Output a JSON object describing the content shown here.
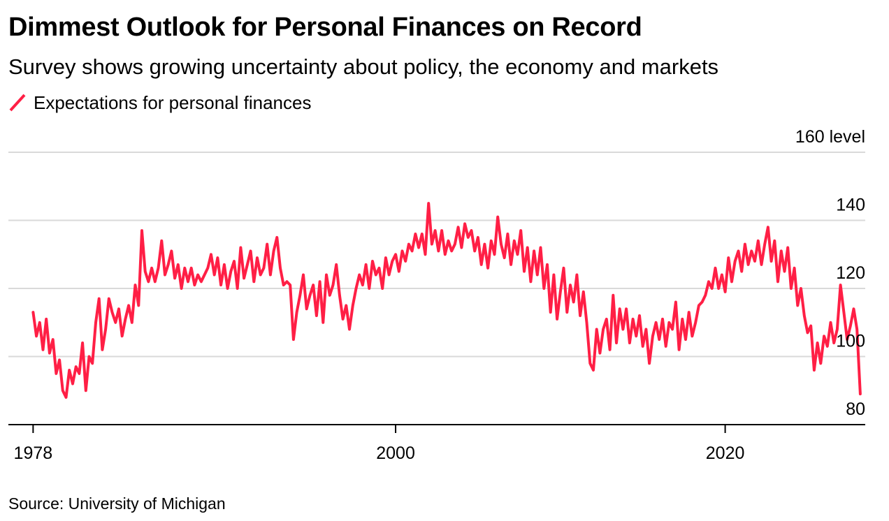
{
  "header": {
    "title": "Dimmest Outlook for Personal Finances on Record",
    "subtitle": "Survey shows growing uncertainty about policy, the economy and markets"
  },
  "legend": {
    "label": "Expectations for personal finances"
  },
  "footer": {
    "source": "Source: University of Michigan"
  },
  "colors": {
    "series": "#ff1f45",
    "grid": "#d9d9d9",
    "axis": "#000000"
  },
  "chart_data": {
    "type": "line",
    "title": "Dimmest Outlook for Personal Finances on Record",
    "subtitle": "Survey shows growing uncertainty about policy, the economy and markets",
    "xlabel": "",
    "ylabel": "",
    "ylim": [
      80,
      160
    ],
    "xlim": [
      1976.5,
      2028.5
    ],
    "grid": true,
    "legend_position": "top-left",
    "y_ticks": [
      {
        "value": 160,
        "label": "160 level"
      },
      {
        "value": 140,
        "label": "140"
      },
      {
        "value": 120,
        "label": "120"
      },
      {
        "value": 100,
        "label": "100"
      },
      {
        "value": 80,
        "label": "80"
      }
    ],
    "x_ticks": [
      {
        "value": 1978,
        "label": "1978"
      },
      {
        "value": 2000,
        "label": "2000"
      },
      {
        "value": 2020,
        "label": "2020"
      }
    ],
    "series": [
      {
        "name": "Expectations for personal finances",
        "color": "#ff1f45",
        "points": [
          [
            1978.0,
            113
          ],
          [
            1978.2,
            106
          ],
          [
            1978.4,
            110
          ],
          [
            1978.6,
            102
          ],
          [
            1978.8,
            111
          ],
          [
            1979.0,
            101
          ],
          [
            1979.2,
            105
          ],
          [
            1979.4,
            95
          ],
          [
            1979.6,
            99
          ],
          [
            1979.8,
            90
          ],
          [
            1980.0,
            88
          ],
          [
            1980.2,
            96
          ],
          [
            1980.4,
            92
          ],
          [
            1980.6,
            97
          ],
          [
            1980.8,
            95
          ],
          [
            1981.0,
            104
          ],
          [
            1981.2,
            90
          ],
          [
            1981.4,
            100
          ],
          [
            1981.6,
            98
          ],
          [
            1981.8,
            110
          ],
          [
            1982.0,
            117
          ],
          [
            1982.2,
            102
          ],
          [
            1982.4,
            108
          ],
          [
            1982.6,
            117
          ],
          [
            1982.8,
            113
          ],
          [
            1983.0,
            110
          ],
          [
            1983.2,
            114
          ],
          [
            1983.4,
            106
          ],
          [
            1983.6,
            111
          ],
          [
            1983.8,
            115
          ],
          [
            1984.0,
            110
          ],
          [
            1984.2,
            121
          ],
          [
            1984.4,
            115
          ],
          [
            1984.6,
            137
          ],
          [
            1984.8,
            125
          ],
          [
            1985.0,
            122
          ],
          [
            1985.2,
            126
          ],
          [
            1985.4,
            122
          ],
          [
            1985.6,
            126
          ],
          [
            1985.8,
            134
          ],
          [
            1986.0,
            124
          ],
          [
            1986.2,
            127
          ],
          [
            1986.4,
            131
          ],
          [
            1986.6,
            123
          ],
          [
            1986.8,
            127
          ],
          [
            1987.0,
            120
          ],
          [
            1987.2,
            126
          ],
          [
            1987.4,
            122
          ],
          [
            1987.6,
            126
          ],
          [
            1987.8,
            121
          ],
          [
            1988.0,
            124
          ],
          [
            1988.2,
            122
          ],
          [
            1988.4,
            124
          ],
          [
            1988.6,
            126
          ],
          [
            1988.8,
            130
          ],
          [
            1989.0,
            124
          ],
          [
            1989.2,
            129
          ],
          [
            1989.4,
            121
          ],
          [
            1989.6,
            127
          ],
          [
            1989.8,
            120
          ],
          [
            1990.0,
            125
          ],
          [
            1990.2,
            128
          ],
          [
            1990.4,
            120
          ],
          [
            1990.6,
            132
          ],
          [
            1990.8,
            123
          ],
          [
            1991.0,
            127
          ],
          [
            1991.2,
            131
          ],
          [
            1991.4,
            122
          ],
          [
            1991.6,
            129
          ],
          [
            1991.8,
            124
          ],
          [
            1992.0,
            126
          ],
          [
            1992.2,
            133
          ],
          [
            1992.4,
            124
          ],
          [
            1992.6,
            131
          ],
          [
            1992.8,
            135
          ],
          [
            1993.0,
            126
          ],
          [
            1993.2,
            121
          ],
          [
            1993.4,
            122
          ],
          [
            1993.6,
            121
          ],
          [
            1993.8,
            105
          ],
          [
            1994.0,
            113
          ],
          [
            1994.2,
            118
          ],
          [
            1994.4,
            124
          ],
          [
            1994.6,
            114
          ],
          [
            1994.8,
            118
          ],
          [
            1995.0,
            121
          ],
          [
            1995.2,
            112
          ],
          [
            1995.4,
            122
          ],
          [
            1995.6,
            110
          ],
          [
            1995.8,
            124
          ],
          [
            1996.0,
            118
          ],
          [
            1996.2,
            121
          ],
          [
            1996.4,
            127
          ],
          [
            1996.6,
            118
          ],
          [
            1996.8,
            111
          ],
          [
            1997.0,
            115
          ],
          [
            1997.2,
            108
          ],
          [
            1997.4,
            115
          ],
          [
            1997.6,
            120
          ],
          [
            1997.8,
            124
          ],
          [
            1998.0,
            121
          ],
          [
            1998.2,
            127
          ],
          [
            1998.4,
            120
          ],
          [
            1998.6,
            128
          ],
          [
            1998.8,
            124
          ],
          [
            1999.0,
            126
          ],
          [
            1999.2,
            120
          ],
          [
            1999.4,
            129
          ],
          [
            1999.6,
            124
          ],
          [
            1999.8,
            128
          ],
          [
            2000.0,
            130
          ],
          [
            2000.2,
            125
          ],
          [
            2000.4,
            131
          ],
          [
            2000.6,
            128
          ],
          [
            2000.8,
            133
          ],
          [
            2001.0,
            131
          ],
          [
            2001.2,
            136
          ],
          [
            2001.4,
            132
          ],
          [
            2001.6,
            136
          ],
          [
            2001.8,
            130
          ],
          [
            2002.0,
            145
          ],
          [
            2002.2,
            133
          ],
          [
            2002.4,
            137
          ],
          [
            2002.6,
            131
          ],
          [
            2002.8,
            137
          ],
          [
            2003.0,
            130
          ],
          [
            2003.2,
            134
          ],
          [
            2003.4,
            131
          ],
          [
            2003.6,
            133
          ],
          [
            2003.8,
            138
          ],
          [
            2004.0,
            132
          ],
          [
            2004.2,
            139
          ],
          [
            2004.4,
            135
          ],
          [
            2004.6,
            137
          ],
          [
            2004.8,
            131
          ],
          [
            2005.0,
            135
          ],
          [
            2005.2,
            127
          ],
          [
            2005.4,
            133
          ],
          [
            2005.6,
            126
          ],
          [
            2005.8,
            134
          ],
          [
            2006.0,
            130
          ],
          [
            2006.2,
            141
          ],
          [
            2006.4,
            133
          ],
          [
            2006.6,
            129
          ],
          [
            2006.8,
            136
          ],
          [
            2007.0,
            127
          ],
          [
            2007.2,
            134
          ],
          [
            2007.4,
            130
          ],
          [
            2007.6,
            137
          ],
          [
            2007.8,
            125
          ],
          [
            2008.0,
            132
          ],
          [
            2008.2,
            122
          ],
          [
            2008.4,
            131
          ],
          [
            2008.6,
            124
          ],
          [
            2008.8,
            132
          ],
          [
            2009.0,
            120
          ],
          [
            2009.2,
            127
          ],
          [
            2009.4,
            113
          ],
          [
            2009.6,
            124
          ],
          [
            2009.8,
            111
          ],
          [
            2010.0,
            119
          ],
          [
            2010.2,
            126
          ],
          [
            2010.4,
            113
          ],
          [
            2010.6,
            121
          ],
          [
            2010.8,
            116
          ],
          [
            2011.0,
            124
          ],
          [
            2011.2,
            112
          ],
          [
            2011.4,
            119
          ],
          [
            2011.6,
            110
          ],
          [
            2011.8,
            98
          ],
          [
            2012.0,
            96
          ],
          [
            2012.2,
            108
          ],
          [
            2012.4,
            101
          ],
          [
            2012.6,
            108
          ],
          [
            2012.8,
            111
          ],
          [
            2013.0,
            102
          ],
          [
            2013.2,
            118
          ],
          [
            2013.4,
            104
          ],
          [
            2013.6,
            114
          ],
          [
            2013.8,
            108
          ],
          [
            2014.0,
            114
          ],
          [
            2014.2,
            104
          ],
          [
            2014.4,
            111
          ],
          [
            2014.6,
            106
          ],
          [
            2014.8,
            112
          ],
          [
            2015.0,
            103
          ],
          [
            2015.2,
            108
          ],
          [
            2015.4,
            98
          ],
          [
            2015.6,
            106
          ],
          [
            2015.8,
            110
          ],
          [
            2016.0,
            105
          ],
          [
            2016.2,
            111
          ],
          [
            2016.4,
            103
          ],
          [
            2016.6,
            110
          ],
          [
            2016.8,
            108
          ],
          [
            2017.0,
            116
          ],
          [
            2017.2,
            102
          ],
          [
            2017.4,
            111
          ],
          [
            2017.6,
            105
          ],
          [
            2017.8,
            113
          ],
          [
            2018.0,
            106
          ],
          [
            2018.2,
            110
          ],
          [
            2018.4,
            115
          ],
          [
            2018.6,
            116
          ],
          [
            2018.8,
            118
          ],
          [
            2019.0,
            122
          ],
          [
            2019.2,
            120
          ],
          [
            2019.4,
            126
          ],
          [
            2019.6,
            120
          ],
          [
            2019.8,
            124
          ],
          [
            2020.0,
            119
          ],
          [
            2020.2,
            129
          ],
          [
            2020.4,
            122
          ],
          [
            2020.6,
            128
          ],
          [
            2020.8,
            131
          ],
          [
            2021.0,
            125
          ],
          [
            2021.2,
            133
          ],
          [
            2021.4,
            127
          ],
          [
            2021.6,
            131
          ],
          [
            2021.8,
            128
          ],
          [
            2022.0,
            134
          ],
          [
            2022.2,
            127
          ],
          [
            2022.4,
            133
          ],
          [
            2022.6,
            138
          ],
          [
            2022.8,
            128
          ],
          [
            2023.0,
            134
          ],
          [
            2023.2,
            122
          ],
          [
            2023.4,
            131
          ],
          [
            2023.6,
            125
          ],
          [
            2023.8,
            132
          ],
          [
            2024.0,
            120
          ],
          [
            2024.2,
            126
          ],
          [
            2024.4,
            115
          ],
          [
            2024.6,
            120
          ],
          [
            2024.8,
            112
          ],
          [
            2025.0,
            107
          ],
          [
            2025.2,
            109
          ],
          [
            2025.4,
            96
          ],
          [
            2025.6,
            104
          ],
          [
            2025.8,
            98
          ],
          [
            2026.0,
            106
          ],
          [
            2026.2,
            103
          ],
          [
            2026.4,
            110
          ],
          [
            2026.6,
            104
          ],
          [
            2026.8,
            108
          ],
          [
            2027.0,
            121
          ],
          [
            2027.2,
            113
          ],
          [
            2027.4,
            105
          ],
          [
            2027.6,
            109
          ],
          [
            2027.8,
            114
          ],
          [
            2028.0,
            108
          ],
          [
            2028.2,
            89
          ]
        ]
      }
    ]
  }
}
